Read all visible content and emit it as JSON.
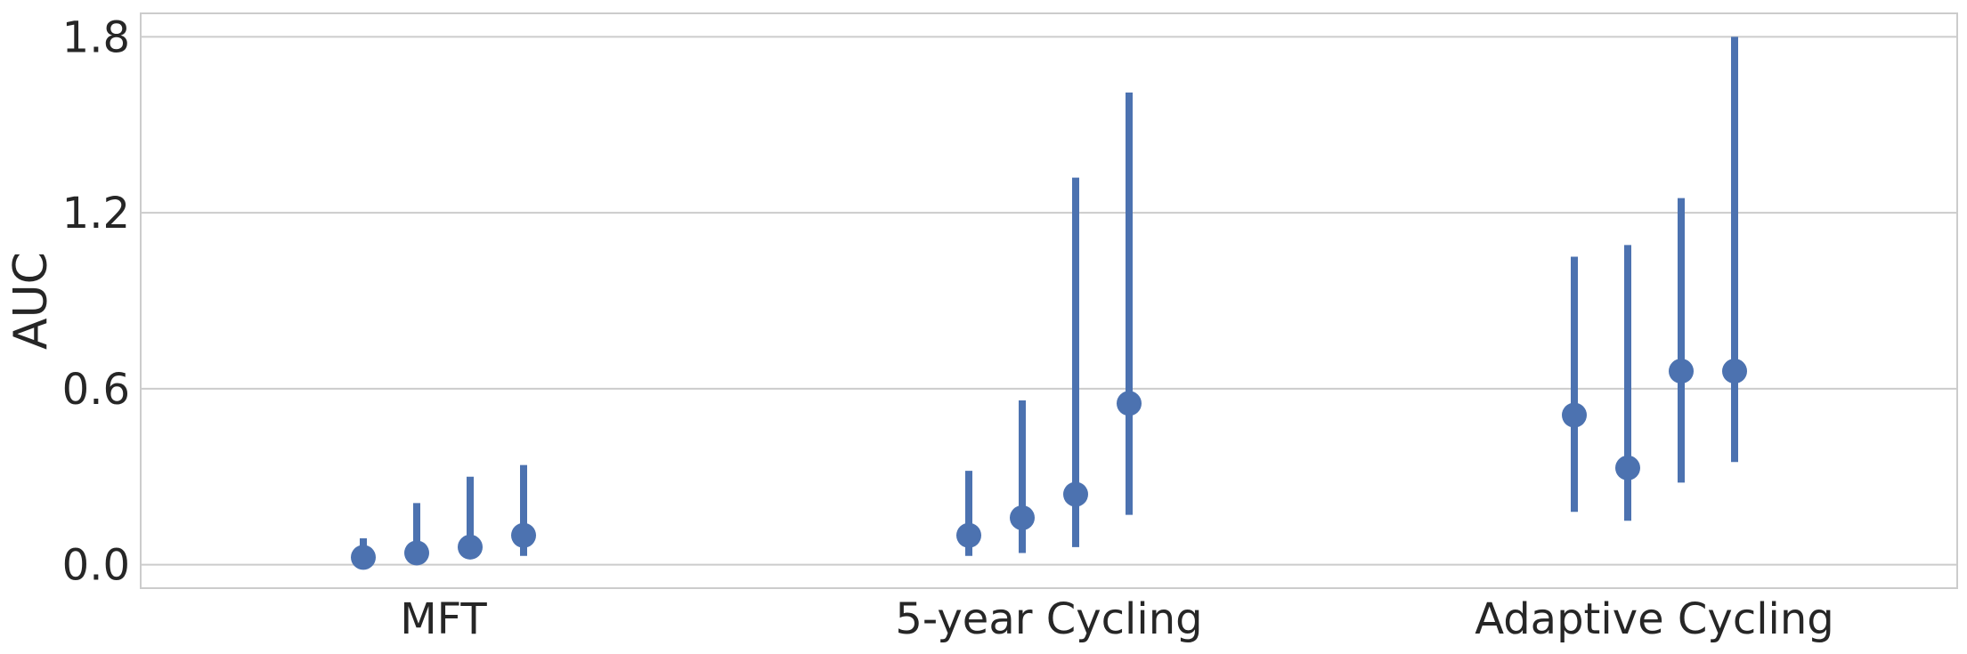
{
  "chart_data": {
    "type": "pointplot",
    "title": "",
    "xlabel": "",
    "ylabel": "AUC",
    "ylim": [
      -0.08,
      1.88
    ],
    "yticks": [
      0.0,
      0.6,
      1.2,
      1.8
    ],
    "ytick_labels": [
      "0.0",
      "0.6",
      "1.2",
      "1.8"
    ],
    "categories": [
      "MFT",
      "5-year Cycling",
      "Adaptive Cycling"
    ],
    "grid": "horizontal",
    "legend": "none",
    "point_color": "#4c72b0",
    "groups": [
      {
        "category": "MFT",
        "points": [
          {
            "value": 0.025,
            "ci": [
              0.01,
              0.09
            ]
          },
          {
            "value": 0.04,
            "ci": [
              0.01,
              0.21
            ]
          },
          {
            "value": 0.06,
            "ci": [
              0.02,
              0.3
            ]
          },
          {
            "value": 0.1,
            "ci": [
              0.03,
              0.34
            ]
          }
        ]
      },
      {
        "category": "5-year Cycling",
        "points": [
          {
            "value": 0.1,
            "ci": [
              0.03,
              0.32
            ]
          },
          {
            "value": 0.16,
            "ci": [
              0.04,
              0.56
            ]
          },
          {
            "value": 0.24,
            "ci": [
              0.06,
              1.32
            ]
          },
          {
            "value": 0.55,
            "ci": [
              0.17,
              1.61
            ]
          }
        ]
      },
      {
        "category": "Adaptive Cycling",
        "points": [
          {
            "value": 0.51,
            "ci": [
              0.18,
              1.05
            ]
          },
          {
            "value": 0.33,
            "ci": [
              0.15,
              1.09
            ]
          },
          {
            "value": 0.66,
            "ci": [
              0.28,
              1.25
            ]
          },
          {
            "value": 0.66,
            "ci": [
              0.35,
              1.8
            ]
          }
        ]
      }
    ]
  }
}
